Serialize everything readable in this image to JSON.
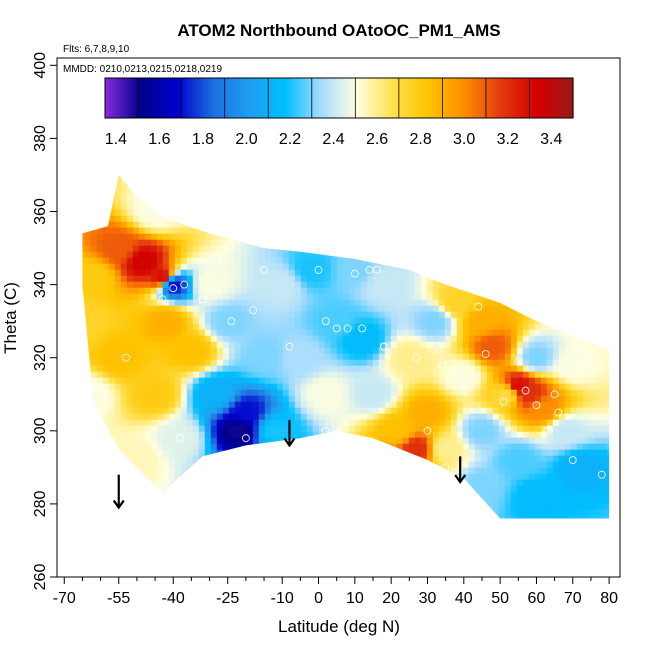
{
  "chart_data": {
    "type": "heatmap",
    "title": "ATOM2 Northbound OAtoOC_PM1_AMS",
    "flights_note": "Flts: 6,7,8,9,10",
    "dates_note": "MMDD: 0210,0213,0215,0218,0219",
    "xlabel": "Latitude (deg N)",
    "ylabel": "Theta (C)",
    "xlim": [
      -72,
      83
    ],
    "ylim": [
      260,
      402
    ],
    "x_ticks": [
      -70,
      -55,
      -40,
      -25,
      -10,
      0,
      10,
      20,
      30,
      40,
      50,
      60,
      70,
      80
    ],
    "x_tick_labels": [
      "-70",
      "-55",
      "-40",
      "-25",
      "-10",
      "0",
      "10",
      "20",
      "30",
      "40",
      "50",
      "60",
      "70",
      "80"
    ],
    "x_minor_ticks": [
      -65,
      -60,
      -50,
      -45,
      -35,
      -30,
      -20,
      -15,
      -5,
      5,
      15,
      25,
      35,
      45,
      55,
      65,
      75
    ],
    "y_ticks": [
      260,
      280,
      300,
      320,
      340,
      360,
      380,
      400
    ],
    "y_tick_labels": [
      "260",
      "280",
      "300",
      "320",
      "340",
      "360",
      "380",
      "400"
    ],
    "colorbar": {
      "range": [
        1.35,
        3.5
      ],
      "ticks": [
        1.4,
        1.6,
        1.8,
        2.0,
        2.2,
        2.4,
        2.6,
        2.8,
        3.0,
        3.2,
        3.4
      ],
      "tick_labels": [
        "1.4",
        "1.6",
        "1.8",
        "2.0",
        "2.2",
        "2.4",
        "2.6",
        "2.8",
        "3.0",
        "3.2",
        "3.4"
      ],
      "colors": [
        "#8a2be2",
        "#00008b",
        "#0000cd",
        "#1e6fe0",
        "#1e9ff0",
        "#00bfff",
        "#a8dcff",
        "#ffffe0",
        "#ffe14d",
        "#ffc400",
        "#ff8c00",
        "#e23a0f",
        "#d50000",
        "#9b1a1a"
      ]
    },
    "field_points": [
      {
        "lat": -62,
        "theta": 342,
        "v": 2.8
      },
      {
        "lat": -55,
        "theta": 350,
        "v": 3.1
      },
      {
        "lat": -48,
        "theta": 346,
        "v": 3.35
      },
      {
        "lat": -43,
        "theta": 342,
        "v": 3.3
      },
      {
        "lat": -45,
        "theta": 360,
        "v": 2.5
      },
      {
        "lat": -40,
        "theta": 340,
        "v": 1.7
      },
      {
        "lat": -42,
        "theta": 330,
        "v": 2.9
      },
      {
        "lat": -65,
        "theta": 330,
        "v": 2.75
      },
      {
        "lat": -55,
        "theta": 320,
        "v": 2.85
      },
      {
        "lat": -45,
        "theta": 310,
        "v": 2.8
      },
      {
        "lat": -35,
        "theta": 322,
        "v": 2.85
      },
      {
        "lat": -63,
        "theta": 310,
        "v": 2.5
      },
      {
        "lat": -50,
        "theta": 292,
        "v": 2.55
      },
      {
        "lat": -38,
        "theta": 298,
        "v": 2.45
      },
      {
        "lat": -25,
        "theta": 330,
        "v": 2.3
      },
      {
        "lat": -22,
        "theta": 300,
        "v": 1.5
      },
      {
        "lat": -20,
        "theta": 305,
        "v": 1.7
      },
      {
        "lat": -28,
        "theta": 310,
        "v": 2.1
      },
      {
        "lat": -15,
        "theta": 320,
        "v": 2.3
      },
      {
        "lat": -12,
        "theta": 300,
        "v": 2.2
      },
      {
        "lat": -10,
        "theta": 340,
        "v": 2.4
      },
      {
        "lat": -2,
        "theta": 344,
        "v": 2.2
      },
      {
        "lat": 5,
        "theta": 330,
        "v": 2.25
      },
      {
        "lat": 2,
        "theta": 310,
        "v": 2.5
      },
      {
        "lat": 10,
        "theta": 344,
        "v": 2.3
      },
      {
        "lat": 12,
        "theta": 325,
        "v": 2.15
      },
      {
        "lat": 15,
        "theta": 310,
        "v": 2.4
      },
      {
        "lat": 18,
        "theta": 340,
        "v": 2.4
      },
      {
        "lat": 22,
        "theta": 300,
        "v": 2.85
      },
      {
        "lat": 27,
        "theta": 295,
        "v": 3.2
      },
      {
        "lat": 25,
        "theta": 320,
        "v": 2.6
      },
      {
        "lat": 30,
        "theta": 305,
        "v": 2.9
      },
      {
        "lat": 35,
        "theta": 295,
        "v": 2.6
      },
      {
        "lat": 32,
        "theta": 330,
        "v": 2.3
      },
      {
        "lat": 38,
        "theta": 335,
        "v": 2.75
      },
      {
        "lat": 45,
        "theta": 330,
        "v": 2.9
      },
      {
        "lat": 48,
        "theta": 323,
        "v": 3.1
      },
      {
        "lat": 40,
        "theta": 315,
        "v": 2.5
      },
      {
        "lat": 45,
        "theta": 300,
        "v": 2.3
      },
      {
        "lat": 52,
        "theta": 310,
        "v": 2.7
      },
      {
        "lat": 55,
        "theta": 312,
        "v": 3.3
      },
      {
        "lat": 58,
        "theta": 310,
        "v": 3.2
      },
      {
        "lat": 62,
        "theta": 306,
        "v": 3.0
      },
      {
        "lat": 60,
        "theta": 320,
        "v": 2.3
      },
      {
        "lat": 55,
        "theta": 292,
        "v": 2.25
      },
      {
        "lat": 68,
        "theta": 300,
        "v": 2.4
      },
      {
        "lat": 72,
        "theta": 290,
        "v": 2.1
      },
      {
        "lat": 60,
        "theta": 282,
        "v": 2.15
      },
      {
        "lat": 45,
        "theta": 285,
        "v": 2.3
      },
      {
        "lat": 70,
        "theta": 318,
        "v": 2.5
      },
      {
        "lat": -5,
        "theta": 320,
        "v": 2.35
      },
      {
        "lat": -30,
        "theta": 340,
        "v": 2.5
      }
    ],
    "boundary": [
      [
        -65,
        340
      ],
      [
        -65,
        354
      ],
      [
        -58,
        356
      ],
      [
        -55,
        370
      ],
      [
        -50,
        364
      ],
      [
        -42,
        358
      ],
      [
        -30,
        354
      ],
      [
        -15,
        350
      ],
      [
        -5,
        349
      ],
      [
        10,
        347
      ],
      [
        25,
        344
      ],
      [
        35,
        340
      ],
      [
        50,
        335
      ],
      [
        60,
        330
      ],
      [
        70,
        326
      ],
      [
        80,
        322
      ],
      [
        80,
        276
      ],
      [
        50,
        276
      ],
      [
        40,
        287
      ],
      [
        30,
        292
      ],
      [
        15,
        298
      ],
      [
        5,
        300
      ],
      [
        -5,
        298
      ],
      [
        -20,
        296
      ],
      [
        -32,
        293
      ],
      [
        -43,
        283
      ],
      [
        -55,
        295
      ],
      [
        -62,
        308
      ]
    ],
    "measurements": [
      {
        "lat": -68,
        "theta": 342
      },
      {
        "lat": -68,
        "theta": 337
      },
      {
        "lat": -53,
        "theta": 320
      },
      {
        "lat": -43,
        "theta": 336
      },
      {
        "lat": -40,
        "theta": 339
      },
      {
        "lat": -37,
        "theta": 340
      },
      {
        "lat": -32,
        "theta": 336
      },
      {
        "lat": -28,
        "theta": 346
      },
      {
        "lat": -24,
        "theta": 330
      },
      {
        "lat": -18,
        "theta": 333
      },
      {
        "lat": -15,
        "theta": 344
      },
      {
        "lat": -20,
        "theta": 298
      },
      {
        "lat": -8,
        "theta": 323
      },
      {
        "lat": 0,
        "theta": 344
      },
      {
        "lat": 2,
        "theta": 330
      },
      {
        "lat": 5,
        "theta": 328
      },
      {
        "lat": 2,
        "theta": 300
      },
      {
        "lat": 8,
        "theta": 328
      },
      {
        "lat": 10,
        "theta": 343
      },
      {
        "lat": 12,
        "theta": 328
      },
      {
        "lat": 14,
        "theta": 344
      },
      {
        "lat": 16,
        "theta": 344
      },
      {
        "lat": 18,
        "theta": 323
      },
      {
        "lat": 13,
        "theta": 294
      },
      {
        "lat": 22,
        "theta": 294
      },
      {
        "lat": 27,
        "theta": 320
      },
      {
        "lat": 30,
        "theta": 300
      },
      {
        "lat": 34,
        "theta": 318
      },
      {
        "lat": 35,
        "theta": 290
      },
      {
        "lat": 40,
        "theta": 311
      },
      {
        "lat": 44,
        "theta": 334
      },
      {
        "lat": 46,
        "theta": 321
      },
      {
        "lat": 51,
        "theta": 308
      },
      {
        "lat": 55,
        "theta": 319
      },
      {
        "lat": 57,
        "theta": 311
      },
      {
        "lat": 60,
        "theta": 307
      },
      {
        "lat": 63,
        "theta": 300
      },
      {
        "lat": 65,
        "theta": 310
      },
      {
        "lat": 66,
        "theta": 305
      },
      {
        "lat": 70,
        "theta": 292
      },
      {
        "lat": 72,
        "theta": 318
      },
      {
        "lat": 78,
        "theta": 288
      },
      {
        "lat": -42,
        "theta": 286
      },
      {
        "lat": -61,
        "theta": 312
      },
      {
        "lat": -38,
        "theta": 298
      }
    ],
    "arrows": [
      {
        "lat": -55,
        "theta_top": 288,
        "theta_bottom": 279
      },
      {
        "lat": -8,
        "theta_top": 303,
        "theta_bottom": 296
      },
      {
        "lat": 39,
        "theta_top": 293,
        "theta_bottom": 286
      }
    ]
  }
}
